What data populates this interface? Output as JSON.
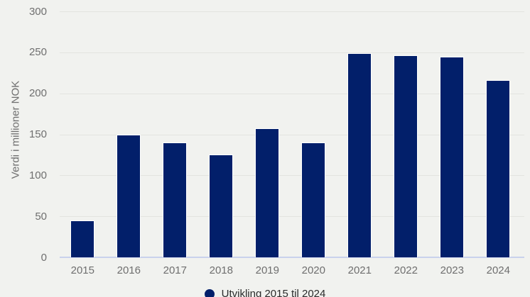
{
  "chart_data": {
    "type": "bar",
    "title": "",
    "categories": [
      "2015",
      "2016",
      "2017",
      "2018",
      "2019",
      "2020",
      "2021",
      "2022",
      "2023",
      "2024"
    ],
    "values": [
      44,
      148,
      139,
      124,
      156,
      139,
      248,
      245,
      243,
      215
    ],
    "xlabel": "",
    "ylabel": "Verdi i millioner NOK",
    "ylim": [
      0,
      300
    ],
    "yticks": [
      0,
      50,
      100,
      150,
      200,
      250,
      300
    ],
    "grid": true,
    "legend": {
      "label": "Utvikling 2015 til 2024",
      "position": "bottom",
      "marker": "circle"
    },
    "colors": {
      "bar": "#021f6a",
      "bar_outline": "#ffffff",
      "background": "#f1f2ef",
      "gridline": "#e3e4e0",
      "axis_line": "#c9d2ec",
      "tick_label": "#6f6f6f",
      "axis_title": "#6f6f6f",
      "legend_text": "#2b2b2b"
    }
  }
}
